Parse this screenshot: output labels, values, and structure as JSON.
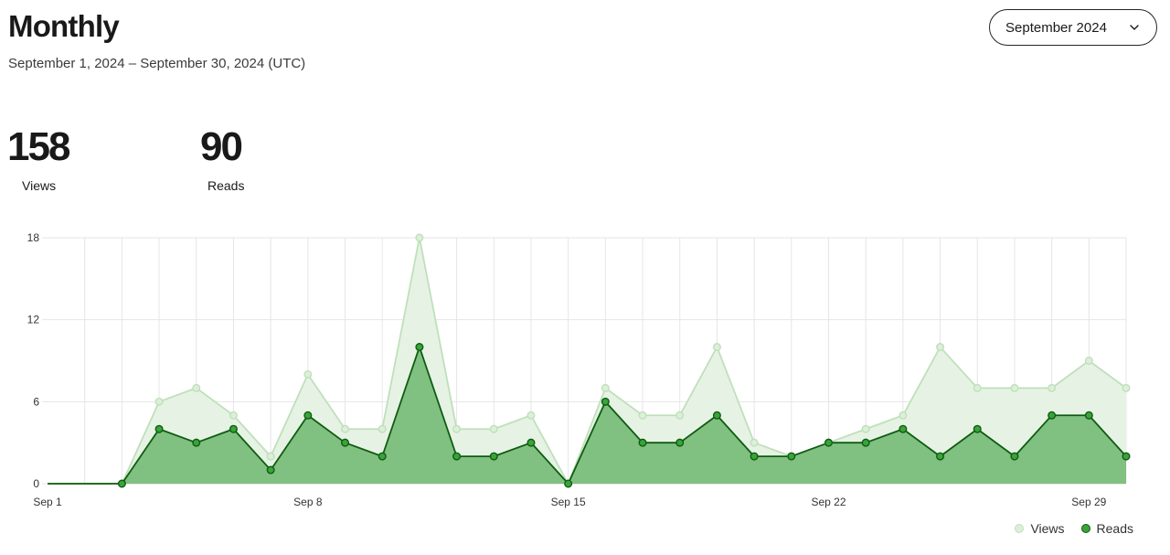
{
  "header": {
    "title": "Monthly",
    "date_range": "September 1, 2024 – September 30, 2024 (UTC)",
    "month_select": {
      "value": "September 2024",
      "icon": "chevron-down-icon"
    }
  },
  "stats": {
    "views": {
      "value": "158",
      "label": "Views"
    },
    "reads": {
      "value": "90",
      "label": "Reads"
    }
  },
  "legend": {
    "views_label": "Views",
    "reads_label": "Reads"
  },
  "colors": {
    "views_line": "#bfe0bb",
    "views_fill": "#e6f3e4",
    "reads_line": "#0f5c12",
    "reads_fill": "#80c080",
    "reads_point": "#3aa33a",
    "grid": "#e6e6e6"
  },
  "chart_data": {
    "type": "area",
    "title": "",
    "xlabel": "",
    "ylabel": "",
    "ylim": [
      0,
      18
    ],
    "yticks": [
      0,
      6,
      12,
      18
    ],
    "x": [
      "Sep 1",
      "Sep 2",
      "Sep 3",
      "Sep 4",
      "Sep 5",
      "Sep 6",
      "Sep 7",
      "Sep 8",
      "Sep 9",
      "Sep 10",
      "Sep 11",
      "Sep 12",
      "Sep 13",
      "Sep 14",
      "Sep 15",
      "Sep 16",
      "Sep 17",
      "Sep 18",
      "Sep 19",
      "Sep 20",
      "Sep 21",
      "Sep 22",
      "Sep 23",
      "Sep 24",
      "Sep 25",
      "Sep 26",
      "Sep 27",
      "Sep 28",
      "Sep 29",
      "Sep 30"
    ],
    "xtick_labels": [
      "Sep 1",
      "Sep 8",
      "Sep 15",
      "Sep 22",
      "Sep 29"
    ],
    "grid": true,
    "legend_position": "bottom-right",
    "series": [
      {
        "name": "Views",
        "values": [
          0,
          0,
          0,
          6,
          7,
          5,
          2,
          8,
          4,
          4,
          18,
          4,
          4,
          5,
          0,
          7,
          5,
          5,
          10,
          3,
          2,
          3,
          4,
          5,
          10,
          7,
          7,
          7,
          9,
          7
        ]
      },
      {
        "name": "Reads",
        "values": [
          0,
          0,
          0,
          4,
          3,
          4,
          1,
          5,
          3,
          2,
          10,
          2,
          2,
          3,
          0,
          6,
          3,
          3,
          5,
          2,
          2,
          3,
          3,
          4,
          2,
          4,
          2,
          5,
          5,
          2
        ]
      }
    ]
  }
}
